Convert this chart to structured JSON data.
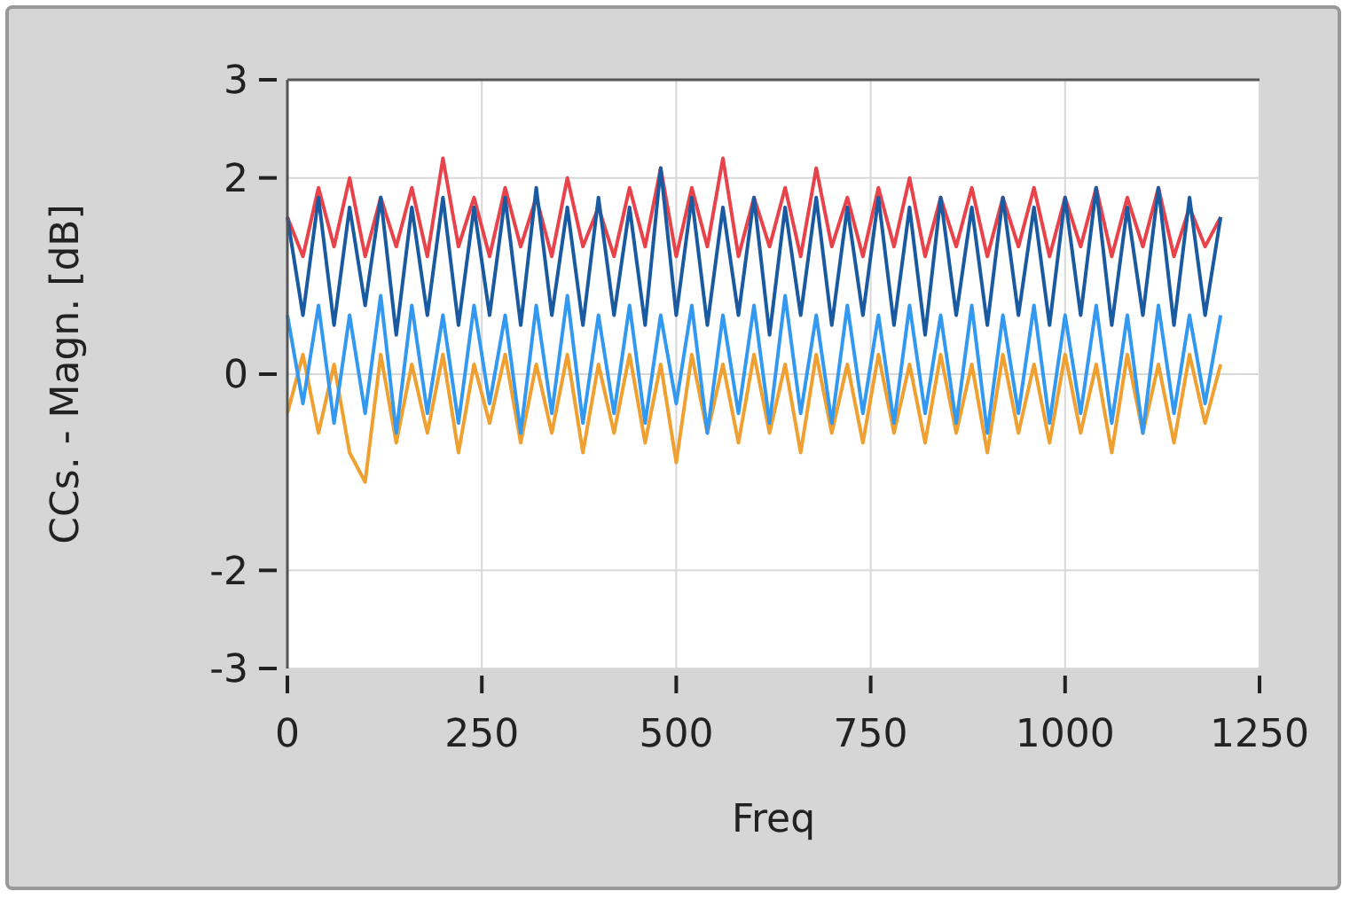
{
  "chart_data": {
    "type": "line",
    "xlabel": "Freq",
    "ylabel": "CCs. - Magn. [dB]",
    "x": [
      0,
      20,
      40,
      60,
      80,
      100,
      120,
      140,
      160,
      180,
      200,
      220,
      240,
      260,
      280,
      300,
      320,
      340,
      360,
      380,
      400,
      420,
      440,
      460,
      480,
      500,
      520,
      540,
      560,
      580,
      600,
      620,
      640,
      660,
      680,
      700,
      720,
      740,
      760,
      780,
      800,
      820,
      840,
      860,
      880,
      900,
      920,
      940,
      960,
      980,
      1000,
      1020,
      1040,
      1060,
      1080,
      1100,
      1120,
      1140,
      1160,
      1180,
      1200
    ],
    "series": [
      {
        "color": "#f0a030",
        "values": [
          -0.4,
          0.2,
          -0.6,
          0.1,
          -0.8,
          -1.1,
          0.2,
          -0.7,
          0.1,
          -0.6,
          0.2,
          -0.8,
          0.1,
          -0.5,
          0.2,
          -0.7,
          0.1,
          -0.6,
          0.2,
          -0.8,
          0.1,
          -0.6,
          0.2,
          -0.7,
          0.1,
          -0.9,
          0.2,
          -0.6,
          0.1,
          -0.7,
          0.2,
          -0.6,
          0.1,
          -0.8,
          0.2,
          -0.6,
          0.1,
          -0.7,
          0.2,
          -0.6,
          0.1,
          -0.7,
          0.2,
          -0.6,
          0.1,
          -0.8,
          0.2,
          -0.6,
          0.1,
          -0.7,
          0.2,
          -0.6,
          0.1,
          -0.8,
          0.2,
          -0.6,
          0.1,
          -0.7,
          0.2,
          -0.5,
          0.1
        ]
      },
      {
        "color": "#e8424a",
        "values": [
          1.6,
          1.2,
          1.9,
          1.3,
          2.0,
          1.2,
          1.8,
          1.3,
          1.9,
          1.2,
          2.2,
          1.3,
          1.8,
          1.2,
          1.9,
          1.3,
          1.8,
          1.2,
          2.0,
          1.3,
          1.7,
          1.2,
          1.9,
          1.3,
          2.1,
          1.2,
          1.9,
          1.3,
          2.2,
          1.2,
          1.8,
          1.3,
          1.9,
          1.2,
          2.1,
          1.3,
          1.8,
          1.2,
          1.9,
          1.3,
          2.0,
          1.2,
          1.8,
          1.3,
          1.9,
          1.2,
          1.8,
          1.3,
          1.9,
          1.2,
          1.8,
          1.3,
          1.9,
          1.2,
          1.8,
          1.3,
          1.9,
          1.2,
          1.7,
          1.3,
          1.6
        ]
      },
      {
        "color": "#1a5aa0",
        "values": [
          1.6,
          0.6,
          1.8,
          0.5,
          1.7,
          0.7,
          1.8,
          0.4,
          1.7,
          0.6,
          1.8,
          0.5,
          1.7,
          0.6,
          1.8,
          0.5,
          1.9,
          0.6,
          1.7,
          0.5,
          1.8,
          0.6,
          1.7,
          0.5,
          2.1,
          0.6,
          1.8,
          0.5,
          1.7,
          0.6,
          1.8,
          0.4,
          1.7,
          0.6,
          1.8,
          0.5,
          1.7,
          0.6,
          1.8,
          0.5,
          1.7,
          0.4,
          1.8,
          0.6,
          1.7,
          0.5,
          1.8,
          0.6,
          1.7,
          0.5,
          1.8,
          0.6,
          1.9,
          0.5,
          1.7,
          0.6,
          1.9,
          0.5,
          1.8,
          0.6,
          1.6
        ]
      },
      {
        "color": "#3399f0",
        "values": [
          0.6,
          -0.3,
          0.7,
          -0.5,
          0.6,
          -0.4,
          0.8,
          -0.6,
          0.7,
          -0.4,
          0.6,
          -0.5,
          0.7,
          -0.3,
          0.6,
          -0.6,
          0.7,
          -0.4,
          0.8,
          -0.5,
          0.6,
          -0.4,
          0.7,
          -0.5,
          0.6,
          -0.3,
          0.7,
          -0.6,
          0.6,
          -0.4,
          0.7,
          -0.5,
          0.8,
          -0.4,
          0.6,
          -0.5,
          0.7,
          -0.4,
          0.6,
          -0.5,
          0.7,
          -0.4,
          0.6,
          -0.5,
          0.7,
          -0.6,
          0.6,
          -0.4,
          0.7,
          -0.5,
          0.6,
          -0.4,
          0.7,
          -0.5,
          0.6,
          -0.6,
          0.7,
          -0.4,
          0.6,
          -0.3,
          0.6
        ]
      }
    ],
    "xlim": [
      0,
      1250
    ],
    "xticks": [
      0,
      250,
      500,
      750,
      1000,
      1250
    ],
    "ylim": [
      -3,
      3
    ],
    "yticks": [
      -3,
      -2,
      0,
      2,
      3
    ],
    "grid": true,
    "marker": "none",
    "line_style": "solid"
  }
}
